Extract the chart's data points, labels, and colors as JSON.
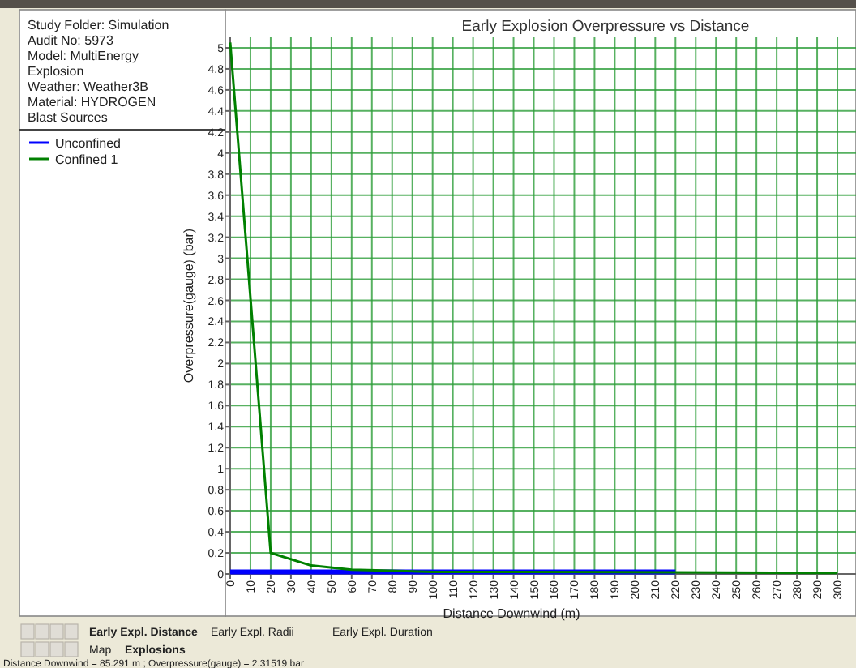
{
  "chart_data": {
    "type": "line",
    "title": "Early Explosion Overpressure vs Distance",
    "xlabel": "Distance Downwind (m)",
    "ylabel": "Overpressure(gauge) (bar)",
    "xlim": [
      0,
      310
    ],
    "xticks": [
      0,
      10,
      20,
      30,
      40,
      50,
      60,
      70,
      80,
      90,
      100,
      110,
      120,
      130,
      140,
      150,
      160,
      170,
      180,
      190,
      200,
      210,
      220,
      230,
      240,
      250,
      260,
      270,
      280,
      290,
      300
    ],
    "ylim": [
      0,
      5.1
    ],
    "yticks": [
      0,
      0.2,
      0.4,
      0.6,
      0.8,
      1,
      1.2,
      1.4,
      1.6,
      1.8,
      2,
      2.2,
      2.4,
      2.6,
      2.8,
      3,
      3.2,
      3.4,
      3.6,
      3.8,
      4,
      4.2,
      4.4,
      4.6,
      4.8,
      5
    ],
    "grid": true,
    "legend": "top left",
    "marker": "none",
    "line_style": "solid",
    "series": [
      {
        "name": "Unconfined",
        "color": "#0000ff",
        "x": [
          0,
          220
        ],
        "values": [
          0.02,
          0.02
        ]
      },
      {
        "name": "Confined 1",
        "color": "#008000",
        "x": [
          0,
          20,
          40,
          60,
          80,
          100,
          140,
          300
        ],
        "values": [
          5.05,
          0.2,
          0.08,
          0.04,
          0.03,
          0.02,
          0.02,
          0.01
        ]
      }
    ],
    "annotations": [
      "Study Folder: Simulation",
      "Audit No: 5973",
      "Model: MultiEnergy",
      "Explosion",
      "Weather: Weather3B",
      "Material: HYDROGEN",
      "Blast Sources",
      "Early Expl. Distance",
      "Early Expl. Radii",
      "Early Expl. Duration",
      "Map",
      "Explosions",
      "Distance Downwind = 85.291 m ; Overpressure(gauge) = 2.31519 bar"
    ]
  }
}
